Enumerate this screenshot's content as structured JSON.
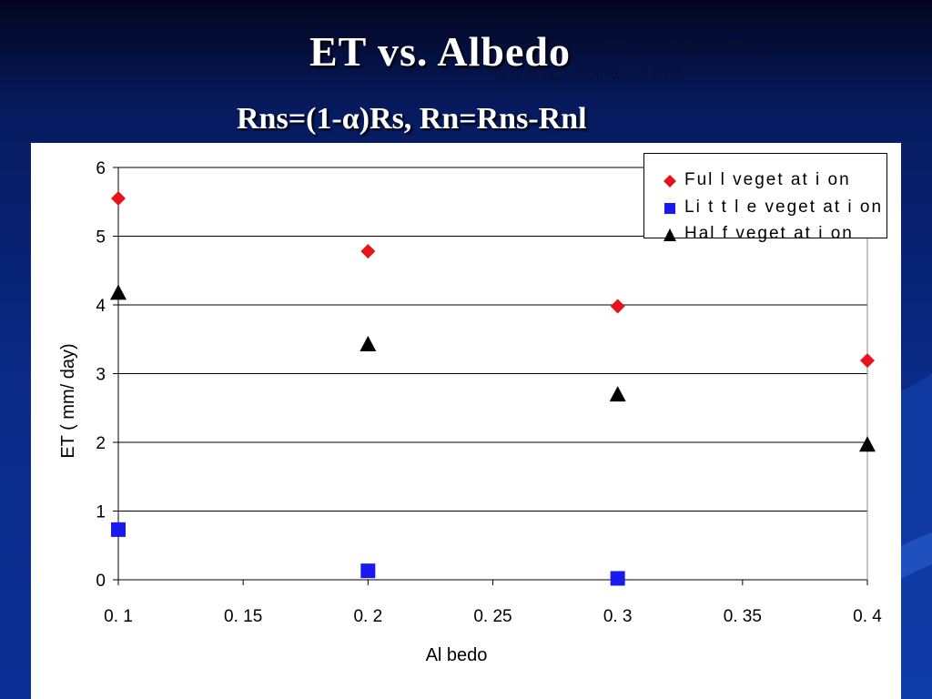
{
  "slide": {
    "title": "ET vs. Albedo",
    "formula_line1": "α = 0.484α₂ + 0.335α₃ − 0.324α₅ + 0.551α₆",
    "formula_line2": "+ 0.305α₈ − 0.367α₉ − 0.0015",
    "subtitle": "Rns=(1-α)Rs, Rn=Rns-Rnl"
  },
  "colors": {
    "full": "#e8141c",
    "little": "#1a1aee",
    "half": "#000000"
  },
  "chart_data": {
    "type": "scatter",
    "title": "",
    "xlabel": "Al bedo",
    "ylabel": "ET ( mm/ day)",
    "xlim": [
      0.1,
      0.4
    ],
    "ylim": [
      0,
      6
    ],
    "xticks": [
      0.1,
      0.15,
      0.2,
      0.25,
      0.3,
      0.35,
      0.4
    ],
    "xtick_labels": [
      "0. 1",
      "0. 15",
      "0. 2",
      "0. 25",
      "0. 3",
      "0. 35",
      "0. 4"
    ],
    "yticks": [
      0,
      1,
      2,
      3,
      4,
      5,
      6
    ],
    "ytick_labels": [
      "0",
      "1",
      "2",
      "3",
      "4",
      "5",
      "6"
    ],
    "grid": "horizontal",
    "legend_position": "top-right",
    "series": [
      {
        "name": "Ful l  veget at i on",
        "marker": "diamond",
        "color": "#e8141c",
        "x": [
          0.1,
          0.2,
          0.3,
          0.4
        ],
        "y": [
          5.55,
          4.78,
          3.98,
          3.19
        ]
      },
      {
        "name": "Li t t l e veget at i on",
        "marker": "square",
        "color": "#1a1aee",
        "x": [
          0.1,
          0.2,
          0.3
        ],
        "y": [
          0.73,
          0.13,
          0.02
        ]
      },
      {
        "name": "Hal f  veget at i on",
        "marker": "triangle",
        "color": "#000000",
        "x": [
          0.1,
          0.2,
          0.3,
          0.4
        ],
        "y": [
          4.18,
          3.43,
          2.7,
          1.97
        ]
      }
    ]
  }
}
